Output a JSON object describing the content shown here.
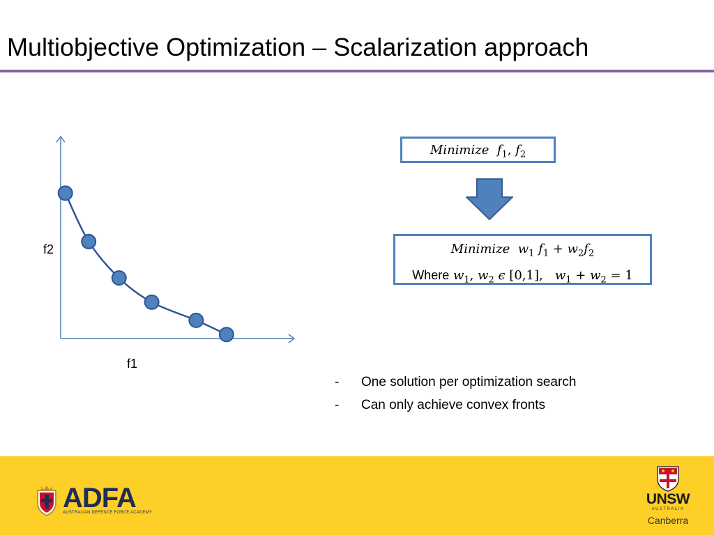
{
  "slide": {
    "title": "Multiobjective Optimization – Scalarization approach"
  },
  "chart_data": {
    "type": "scatter",
    "xlabel": "f1",
    "ylabel": "f2",
    "series": [
      {
        "values": [
          [
            0.02,
            0.72
          ],
          [
            0.12,
            0.48
          ],
          [
            0.25,
            0.3
          ],
          [
            0.39,
            0.18
          ],
          [
            0.58,
            0.09
          ],
          [
            0.71,
            0.02
          ]
        ]
      }
    ],
    "connected_by_curve": true,
    "xlim": [
      0,
      1
    ],
    "ylim": [
      0,
      1
    ],
    "colors": {
      "point_fill": "#4f81bd",
      "point_stroke": "#2f5597",
      "curve": "#2f5597",
      "axis": "#4f81bd"
    }
  },
  "formulas": {
    "problem": {
      "keyword": "Minimize",
      "f1": "f",
      "f1_sub": "1",
      "f2": "f",
      "f2_sub": "2"
    },
    "scalarized": {
      "keyword": "Minimize",
      "w": "w",
      "f": "f",
      "sub1": "1",
      "sub2": "2",
      "plus": "+",
      "where_label": "Where",
      "in_symbol": "ϵ",
      "interval": "[0,1],",
      "equals": "=",
      "one": "1"
    }
  },
  "bullets": {
    "dash": "-",
    "items": [
      "One solution per optimization search",
      "Can only achieve convex fronts"
    ]
  },
  "footer": {
    "adfa_name": "ADFA",
    "adfa_subtitle": "AUSTRALIAN DEFENCE FORCE ACADEMY",
    "unsw_name": "UNSW",
    "unsw_country": "AUSTRALIA",
    "unsw_campus": "Canberra",
    "background": "#fecf27"
  },
  "theme": {
    "rule_color": "#8064a2",
    "accent": "#4f81bd"
  }
}
